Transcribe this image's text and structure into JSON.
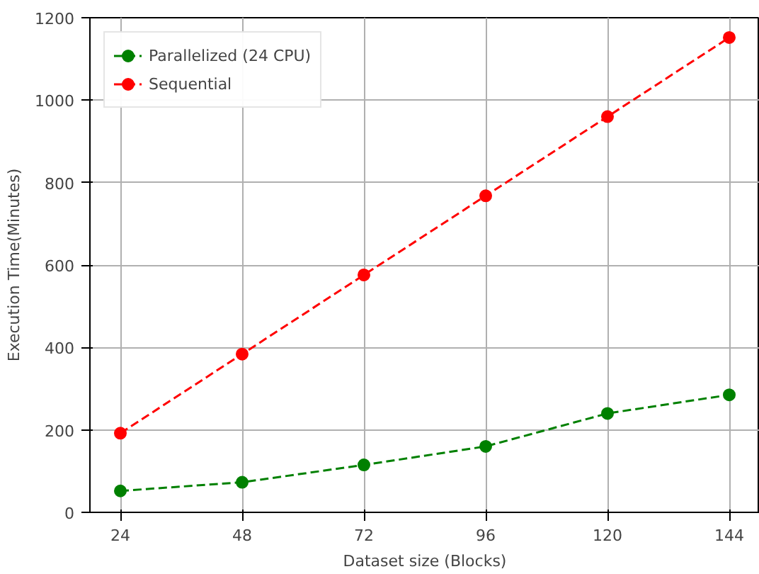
{
  "chart_data": {
    "type": "line",
    "xlabel": "Dataset size (Blocks)",
    "ylabel": "Execution Time(Minutes)",
    "x": [
      24,
      48,
      72,
      96,
      120,
      144
    ],
    "series": [
      {
        "name": "Parallelized (24 CPU)",
        "color": "#008000",
        "values": [
          52,
          73,
          115,
          160,
          240,
          285
        ]
      },
      {
        "name": "Sequential",
        "color": "#ff0000",
        "values": [
          192,
          384,
          576,
          768,
          960,
          1152
        ]
      }
    ],
    "xlim": [
      18,
      150
    ],
    "ylim": [
      0,
      1200
    ],
    "xticks": [
      24,
      48,
      72,
      96,
      120,
      144
    ],
    "yticks": [
      0,
      200,
      400,
      600,
      800,
      1000,
      1200
    ],
    "grid": true,
    "legend": "top left",
    "marker": "circle",
    "line_style": "dashed"
  }
}
